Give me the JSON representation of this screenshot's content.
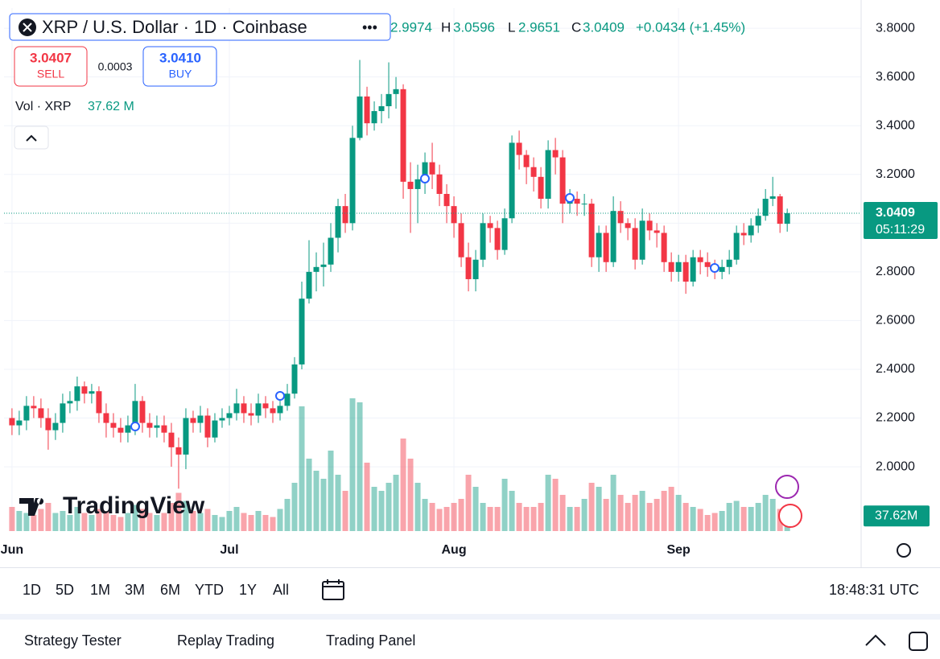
{
  "chart_data": {
    "type": "candlestick",
    "title": "XRP / U.S. Dollar · 1D · Coinbase",
    "open": [
      2.2,
      2.17,
      2.19,
      2.25,
      2.24,
      2.2,
      2.15,
      2.18,
      2.26,
      2.27,
      2.33,
      2.3,
      2.31,
      2.22,
      2.18,
      2.16,
      2.14,
      2.17,
      2.27,
      2.18,
      2.16,
      2.17,
      2.14,
      2.08,
      2.05,
      2.2,
      2.18,
      2.21,
      2.12,
      2.19,
      2.2,
      2.22,
      2.26,
      2.22,
      2.21,
      2.26,
      2.24,
      2.22,
      2.25,
      2.3,
      2.42,
      2.69,
      2.8,
      2.82,
      2.83,
      2.94,
      3.07,
      3.0,
      3.35,
      3.52,
      3.41,
      3.46,
      3.48,
      3.53,
      3.55,
      3.17,
      3.14,
      3.18,
      3.25,
      3.2,
      3.12,
      3.07,
      3.0,
      2.86,
      2.77,
      2.85,
      3.0,
      2.98,
      2.89,
      3.02,
      3.33,
      3.28,
      3.23,
      3.19,
      3.1,
      3.3,
      3.27,
      3.08,
      3.1,
      3.08,
      3.08,
      2.86,
      2.96,
      2.84,
      3.05,
      3.0,
      2.98,
      2.85,
      3.01,
      2.97,
      2.96,
      2.84,
      2.8,
      2.84,
      2.76,
      2.86,
      2.84,
      2.82,
      2.8,
      2.82,
      2.85,
      2.96,
      2.95,
      2.99,
      3.03,
      3.1,
      3.11,
      2.9974
    ],
    "high": [
      2.24,
      2.23,
      2.29,
      2.29,
      2.28,
      2.24,
      2.22,
      2.3,
      2.31,
      2.37,
      2.35,
      2.34,
      2.33,
      2.26,
      2.22,
      2.2,
      2.21,
      2.34,
      2.29,
      2.22,
      2.21,
      2.21,
      2.18,
      2.12,
      2.24,
      2.23,
      2.25,
      2.24,
      2.22,
      2.24,
      2.25,
      2.32,
      2.29,
      2.26,
      2.3,
      2.29,
      2.27,
      2.29,
      2.34,
      2.45,
      2.76,
      2.93,
      2.88,
      2.92,
      3.0,
      3.1,
      3.12,
      3.4,
      3.67,
      3.56,
      3.5,
      3.53,
      3.66,
      3.6,
      3.57,
      3.25,
      3.24,
      3.29,
      3.33,
      3.24,
      3.16,
      3.11,
      3.04,
      2.92,
      2.89,
      3.04,
      3.03,
      3.01,
      3.06,
      3.36,
      3.38,
      3.3,
      3.27,
      3.23,
      3.34,
      3.35,
      3.3,
      3.14,
      3.13,
      3.12,
      3.1,
      2.99,
      2.99,
      3.11,
      3.09,
      3.02,
      3.02,
      3.06,
      3.04,
      3.0,
      2.99,
      2.88,
      2.87,
      2.87,
      2.89,
      2.89,
      2.88,
      2.85,
      2.85,
      2.89,
      2.99,
      3.0,
      3.02,
      3.06,
      3.14,
      3.19,
      3.12,
      3.0596
    ],
    "low": [
      2.13,
      2.13,
      2.15,
      2.2,
      2.16,
      2.07,
      2.11,
      2.14,
      2.22,
      2.23,
      2.26,
      2.26,
      2.18,
      2.12,
      2.12,
      2.1,
      2.1,
      2.13,
      2.14,
      2.12,
      2.12,
      2.1,
      2.0,
      1.91,
      1.99,
      2.14,
      2.14,
      2.08,
      2.1,
      2.16,
      2.17,
      2.19,
      2.18,
      2.17,
      2.18,
      2.2,
      2.18,
      2.19,
      2.23,
      2.28,
      2.4,
      2.67,
      2.72,
      2.74,
      2.8,
      2.88,
      2.96,
      2.97,
      3.34,
      3.36,
      3.38,
      3.41,
      3.43,
      3.47,
      3.1,
      2.96,
      3.0,
      3.12,
      3.14,
      3.07,
      3.0,
      2.94,
      2.82,
      2.72,
      2.72,
      2.82,
      2.92,
      2.85,
      2.87,
      3.0,
      3.22,
      3.16,
      3.13,
      3.06,
      3.06,
      3.2,
      3.0,
      3.04,
      3.03,
      3.03,
      2.82,
      2.8,
      2.8,
      2.82,
      2.96,
      2.93,
      2.81,
      2.83,
      2.93,
      2.9,
      2.8,
      2.76,
      2.76,
      2.71,
      2.74,
      2.79,
      2.78,
      2.77,
      2.77,
      2.79,
      2.83,
      2.91,
      2.92,
      2.96,
      3.01,
      3.07,
      2.96,
      2.9651
    ],
    "close": [
      2.17,
      2.19,
      2.25,
      2.24,
      2.2,
      2.15,
      2.18,
      2.26,
      2.27,
      2.33,
      2.3,
      2.31,
      2.22,
      2.18,
      2.16,
      2.14,
      2.17,
      2.27,
      2.18,
      2.16,
      2.17,
      2.14,
      2.08,
      2.05,
      2.2,
      2.18,
      2.21,
      2.12,
      2.19,
      2.2,
      2.22,
      2.26,
      2.22,
      2.21,
      2.26,
      2.24,
      2.22,
      2.25,
      2.3,
      2.42,
      2.69,
      2.8,
      2.82,
      2.83,
      2.94,
      3.07,
      3.0,
      3.35,
      3.52,
      3.41,
      3.46,
      3.48,
      3.53,
      3.55,
      3.17,
      3.14,
      3.18,
      3.25,
      3.2,
      3.12,
      3.07,
      3.0,
      2.86,
      2.77,
      2.85,
      3.0,
      2.98,
      2.89,
      3.02,
      3.33,
      3.28,
      3.23,
      3.19,
      3.1,
      3.3,
      3.27,
      3.08,
      3.1,
      3.08,
      3.08,
      2.86,
      2.96,
      2.84,
      3.05,
      3.0,
      2.98,
      2.85,
      3.01,
      2.97,
      2.96,
      2.84,
      2.8,
      2.84,
      2.76,
      2.86,
      2.84,
      2.82,
      2.8,
      2.82,
      2.85,
      2.96,
      2.95,
      2.99,
      3.03,
      3.1,
      3.11,
      2.9974,
      3.0409
    ],
    "volume": [
      60,
      50,
      45,
      40,
      55,
      70,
      45,
      50,
      40,
      60,
      45,
      40,
      55,
      50,
      40,
      35,
      45,
      65,
      55,
      45,
      40,
      45,
      70,
      95,
      75,
      50,
      45,
      55,
      40,
      35,
      50,
      60,
      45,
      40,
      50,
      40,
      35,
      55,
      80,
      120,
      310,
      180,
      150,
      130,
      200,
      140,
      100,
      330,
      320,
      170,
      110,
      100,
      120,
      140,
      230,
      180,
      120,
      80,
      70,
      55,
      60,
      70,
      80,
      140,
      110,
      70,
      60,
      60,
      130,
      100,
      70,
      60,
      60,
      70,
      140,
      130,
      90,
      60,
      60,
      80,
      120,
      110,
      80,
      140,
      90,
      70,
      90,
      100,
      70,
      80,
      100,
      110,
      90,
      70,
      60,
      55,
      40,
      45,
      50,
      70,
      75,
      60,
      60,
      70,
      90,
      80,
      55,
      37.62
    ],
    "up_color": "#089981",
    "down_color": "#f23645",
    "xlim": [
      -1.1,
      117.2
    ],
    "xticks": [
      {
        "value": 0,
        "label": "Jun"
      },
      {
        "value": 30,
        "label": "Jul"
      },
      {
        "value": 61,
        "label": "Aug"
      },
      {
        "value": 92,
        "label": "Sep"
      }
    ],
    "ylim": [
      1.736,
      3.883
    ],
    "yticks": [
      {
        "value": 3.8,
        "label": "3.8000"
      },
      {
        "value": 3.6,
        "label": "3.6000"
      },
      {
        "value": 3.4,
        "label": "3.4000"
      },
      {
        "value": 3.2,
        "label": "3.2000"
      },
      {
        "value": 3.0,
        "label": "3.0000"
      },
      {
        "value": 2.8,
        "label": "2.8000"
      },
      {
        "value": 2.6,
        "label": "2.6000"
      },
      {
        "value": 2.4,
        "label": "2.4000"
      },
      {
        "value": 2.2,
        "label": "2.2000"
      },
      {
        "value": 2.0,
        "label": "2.0000"
      }
    ],
    "grid": true,
    "ohlc_letters": [
      "H",
      "L",
      "C"
    ],
    "change_label": "+0.0434 (+1.45%)",
    "countdown": "05:11:29",
    "volume_axis_label": "37.62M"
  },
  "ui": {
    "sell_price": "3.0407",
    "sell": "SELL",
    "spread": "0.0003",
    "buy_price": "3.0410",
    "buy": "BUY",
    "vol_title": "Vol · XRP",
    "vol_value": "37.62 M",
    "logo": "TradingView",
    "ranges": [
      "1D",
      "5D",
      "1M",
      "3M",
      "6M",
      "YTD",
      "1Y",
      "All"
    ],
    "clock": "18:48:31 UTC",
    "tabs": [
      "Strategy Tester",
      "Replay Trading",
      "Trading Panel"
    ]
  }
}
